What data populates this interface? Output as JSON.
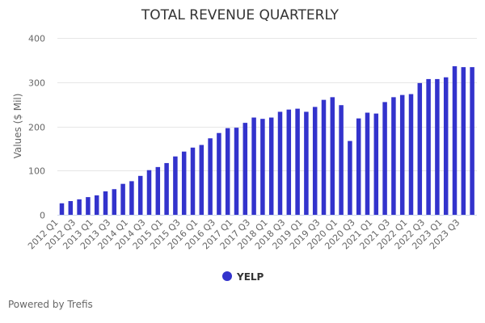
{
  "chart_data": {
    "type": "bar",
    "title": "TOTAL REVENUE QUARTERLY",
    "xlabel": "",
    "ylabel": "Values ($ Mil)",
    "ylim": [
      0,
      400
    ],
    "yticks": [
      0,
      100,
      200,
      300,
      400
    ],
    "grid": true,
    "legend_position": "bottom-center",
    "categories": [
      "2012 Q1",
      "2012 Q2",
      "2012 Q3",
      "2012 Q4",
      "2013 Q1",
      "2013 Q2",
      "2013 Q3",
      "2013 Q4",
      "2014 Q1",
      "2014 Q2",
      "2014 Q3",
      "2014 Q4",
      "2015 Q1",
      "2015 Q2",
      "2015 Q3",
      "2015 Q4",
      "2016 Q1",
      "2016 Q2",
      "2016 Q3",
      "2016 Q4",
      "2017 Q1",
      "2017 Q2",
      "2017 Q3",
      "2017 Q4",
      "2018 Q1",
      "2018 Q2",
      "2018 Q3",
      "2018 Q4",
      "2019 Q1",
      "2019 Q2",
      "2019 Q3",
      "2019 Q4",
      "2020 Q1",
      "2020 Q2",
      "2020 Q3",
      "2020 Q4",
      "2021 Q1",
      "2021 Q2",
      "2021 Q3",
      "2021 Q4",
      "2022 Q1",
      "2022 Q2",
      "2022 Q3",
      "2022 Q4",
      "2023 Q1",
      "2023 Q2",
      "2023 Q3",
      "2023 Q4"
    ],
    "tick_labels": [
      "2012 Q1",
      "2012 Q3",
      "2013 Q1",
      "2013 Q3",
      "2014 Q1",
      "2014 Q3",
      "2015 Q1",
      "2015 Q3",
      "2016 Q1",
      "2016 Q3",
      "2017 Q1",
      "2017 Q3",
      "2018 Q1",
      "2018 Q3",
      "2019 Q1",
      "2019 Q3",
      "2020 Q1",
      "2020 Q3",
      "2021 Q1",
      "2021 Q3",
      "2022 Q1",
      "2022 Q3",
      "2023 Q1",
      "2023 Q3"
    ],
    "series": [
      {
        "name": "YELP",
        "color": "#3333CC",
        "values": [
          26,
          31,
          35,
          40,
          44,
          53,
          58,
          70,
          76,
          88,
          101,
          108,
          117,
          132,
          143,
          152,
          158,
          173,
          185,
          196,
          197,
          208,
          220,
          217,
          220,
          233,
          238,
          240,
          233,
          244,
          260,
          266,
          248,
          167,
          218,
          231,
          229,
          255,
          266,
          271,
          273,
          298,
          307,
          307,
          311,
          336,
          334,
          334
        ]
      }
    ]
  },
  "footer": {
    "text": "Powered by Trefis"
  }
}
